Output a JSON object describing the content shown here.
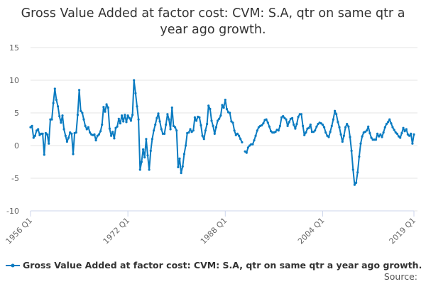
{
  "chart_data": {
    "type": "line",
    "title": "Gross Value Added at factor cost: CVM: S.A, qtr on same qtr a year ago growth.",
    "start": "1956 Q1",
    "end": "2019 Q1",
    "x_ticks": [
      "1956 Q1",
      "1972 Q1",
      "1988 Q1",
      "2004 Q1",
      "2019 Q1"
    ],
    "y_ticks": [
      15,
      10,
      5,
      0,
      -5,
      -10
    ],
    "ylim": [
      -10,
      15
    ],
    "grid": true,
    "legend_position": "bottom",
    "series": [
      {
        "name": "Gross Value Added at factor cost: CVM: S.A, qtr on same qtr a year ago growth.",
        "color": "#0a7bc1",
        "values": [
          2.8,
          3.0,
          1.2,
          1.5,
          2.3,
          2.5,
          1.6,
          1.8,
          1.8,
          -1.4,
          1.9,
          1.7,
          0.3,
          4.0,
          4.0,
          6.5,
          8.7,
          7.0,
          6.0,
          4.5,
          3.5,
          4.6,
          2.5,
          1.5,
          0.6,
          1.2,
          2.0,
          1.8,
          -1.3,
          1.9,
          2.0,
          4.7,
          8.5,
          5.3,
          5.0,
          4.0,
          3.0,
          2.5,
          2.8,
          2.0,
          1.7,
          1.6,
          1.7,
          0.8,
          1.5,
          1.7,
          2.2,
          3.2,
          5.9,
          5.2,
          6.3,
          5.8,
          2.6,
          1.5,
          2.1,
          1.1,
          2.7,
          2.9,
          4.1,
          3.4,
          4.6,
          3.7,
          4.7,
          3.6,
          4.6,
          4.2,
          3.8,
          4.7,
          10.0,
          8.0,
          6.0,
          4.0,
          -3.7,
          -2.5,
          -0.6,
          -1.8,
          1.0,
          -1.5,
          -3.7,
          -0.8,
          1.0,
          2.3,
          3.2,
          4.2,
          4.9,
          3.7,
          2.5,
          1.8,
          1.8,
          3.2,
          4.8,
          4.0,
          2.5,
          5.8,
          3.0,
          2.8,
          2.3,
          -3.3,
          -2.0,
          -4.2,
          -3.2,
          -1.3,
          0.0,
          1.9,
          2.0,
          2.5,
          2.1,
          2.3,
          4.3,
          3.8,
          4.4,
          4.3,
          3.1,
          1.5,
          1.0,
          2.3,
          3.3,
          6.1,
          5.6,
          3.8,
          3.0,
          1.8,
          2.8,
          3.8,
          4.1,
          4.6,
          6.2,
          5.8,
          7.0,
          5.6,
          5.1,
          5.0,
          3.7,
          3.5,
          2.3,
          1.6,
          1.8,
          1.5,
          1.0,
          0.5,
          null,
          -0.9,
          -1.1,
          -0.3,
          0.0,
          0.2,
          0.2,
          0.8,
          1.5,
          2.3,
          2.8,
          3.0,
          3.1,
          3.4,
          3.9,
          4.0,
          3.5,
          2.9,
          2.2,
          2.0,
          2.0,
          2.1,
          2.4,
          2.3,
          3.0,
          4.3,
          4.5,
          4.2,
          4.0,
          3.0,
          3.6,
          4.1,
          4.2,
          3.2,
          2.6,
          3.3,
          4.4,
          4.8,
          4.8,
          3.0,
          1.6,
          2.0,
          2.6,
          2.7,
          3.2,
          2.1,
          2.1,
          2.3,
          2.9,
          3.3,
          3.5,
          3.4,
          3.2,
          2.8,
          2.0,
          1.5,
          1.3,
          2.1,
          3.0,
          4.0,
          5.3,
          4.8,
          3.6,
          2.8,
          1.7,
          0.6,
          1.5,
          2.8,
          3.3,
          2.9,
          1.3,
          -0.8,
          -3.7,
          -6.0,
          -5.7,
          -4.1,
          -1.7,
          0.3,
          1.4,
          2.0,
          2.1,
          2.3,
          2.9,
          1.9,
          1.2,
          0.9,
          0.9,
          0.9,
          1.8,
          1.4,
          1.7,
          1.3,
          2.0,
          2.8,
          3.3,
          3.6,
          4.0,
          3.4,
          2.8,
          2.4,
          2.0,
          1.8,
          1.4,
          1.2,
          1.9,
          2.7,
          2.2,
          2.5,
          1.7,
          1.5,
          1.8,
          0.3,
          1.7
        ]
      }
    ]
  },
  "legend": {
    "label": "Gross Value Added at factor cost: CVM: S.A, qtr on same qtr a year ago growth."
  },
  "source": {
    "label": "Source:"
  }
}
